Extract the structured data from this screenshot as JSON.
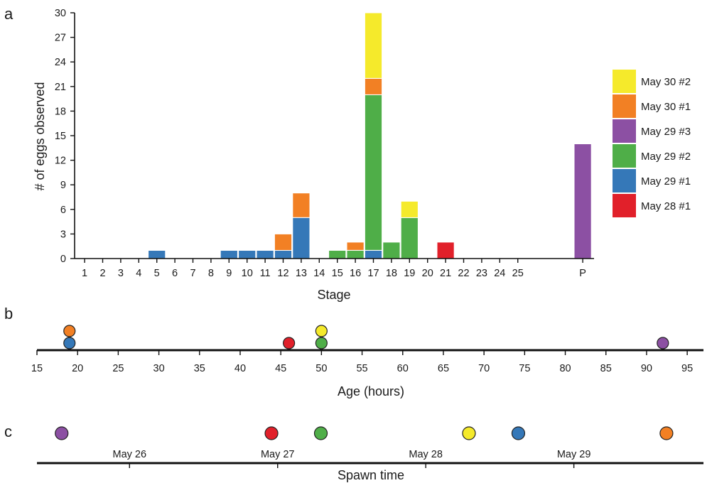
{
  "panels": [
    {
      "letter": "a"
    },
    {
      "letter": "b"
    },
    {
      "letter": "c"
    }
  ],
  "series_colors": {
    "May 30 #2": "#f5ea2b",
    "May 30 #1": "#f28024",
    "May 29 #3": "#8c50a3",
    "May 29 #2": "#4fae48",
    "May 29 #1": "#3578b8",
    "May 28 #1": "#e1202a"
  },
  "chart_data": [
    {
      "type": "bar",
      "stacked": true,
      "xlabel": "Stage",
      "ylabel": "# of eggs observed",
      "ylim": [
        0,
        30
      ],
      "yticks": [
        0,
        3,
        6,
        9,
        12,
        15,
        18,
        21,
        24,
        27,
        30
      ],
      "categories": [
        "1",
        "2",
        "3",
        "4",
        "5",
        "6",
        "7",
        "8",
        "9",
        "10",
        "11",
        "12",
        "13",
        "14",
        "15",
        "16",
        "17",
        "18",
        "19",
        "20",
        "21",
        "22",
        "23",
        "24",
        "25",
        "P"
      ],
      "legend_position": "right",
      "legend": [
        "May 30 #2",
        "May 30 #1",
        "May 29 #3",
        "May 29 #2",
        "May 29 #1",
        "May 28 #1"
      ],
      "series": [
        {
          "name": "May 28 #1",
          "values": [
            0,
            0,
            0,
            0,
            0,
            0,
            0,
            0,
            0,
            0,
            0,
            0,
            0,
            0,
            0,
            0,
            0,
            0,
            0,
            0,
            2,
            0,
            0,
            0,
            0,
            0
          ]
        },
        {
          "name": "May 29 #1",
          "values": [
            0,
            0,
            0,
            0,
            1,
            0,
            0,
            0,
            1,
            1,
            1,
            1,
            5,
            0,
            0,
            0,
            1,
            0,
            0,
            0,
            0,
            0,
            0,
            0,
            0,
            0
          ]
        },
        {
          "name": "May 29 #2",
          "values": [
            0,
            0,
            0,
            0,
            0,
            0,
            0,
            0,
            0,
            0,
            0,
            0,
            0,
            0,
            1,
            1,
            19,
            2,
            5,
            0,
            0,
            0,
            0,
            0,
            0,
            0
          ]
        },
        {
          "name": "May 29 #3",
          "values": [
            0,
            0,
            0,
            0,
            0,
            0,
            0,
            0,
            0,
            0,
            0,
            0,
            0,
            0,
            0,
            0,
            0,
            0,
            0,
            0,
            0,
            0,
            0,
            0,
            0,
            14
          ]
        },
        {
          "name": "May 30 #1",
          "values": [
            0,
            0,
            0,
            0,
            0,
            0,
            0,
            0,
            0,
            0,
            0,
            2,
            3,
            0,
            0,
            1,
            2,
            0,
            0,
            0,
            0,
            0,
            0,
            0,
            0,
            0
          ]
        },
        {
          "name": "May 30 #2",
          "values": [
            0,
            0,
            0,
            0,
            0,
            0,
            0,
            0,
            0,
            0,
            0,
            0,
            0,
            0,
            0,
            0,
            8,
            0,
            2,
            0,
            0,
            0,
            0,
            0,
            0,
            0
          ]
        }
      ]
    },
    {
      "type": "scatter",
      "xlabel": "Age (hours)",
      "xlim": [
        15,
        97
      ],
      "xticks": [
        15,
        20,
        25,
        30,
        35,
        40,
        45,
        50,
        55,
        60,
        65,
        70,
        75,
        80,
        85,
        90,
        95
      ],
      "points": [
        {
          "series": "May 29 #1",
          "x": 19,
          "row": 0
        },
        {
          "series": "May 30 #1",
          "x": 19,
          "row": 1
        },
        {
          "series": "May 28 #1",
          "x": 46,
          "row": 0
        },
        {
          "series": "May 29 #2",
          "x": 50,
          "row": 0
        },
        {
          "series": "May 30 #2",
          "x": 50,
          "row": 1
        },
        {
          "series": "May 29 #3",
          "x": 92,
          "row": 0
        }
      ]
    },
    {
      "type": "scatter",
      "xlabel": "Spawn time",
      "xlim": [
        "May 25 09:00",
        "May 29 21:00"
      ],
      "xticks": [
        "May 26",
        "May 27",
        "May 28",
        "May 29"
      ],
      "points": [
        {
          "series": "May 29 #3",
          "x": "May 25 13:00"
        },
        {
          "series": "May 28 #1",
          "x": "May 26 23:00"
        },
        {
          "series": "May 29 #2",
          "x": "May 27 07:00"
        },
        {
          "series": "May 30 #2",
          "x": "May 28 07:00"
        },
        {
          "series": "May 29 #1",
          "x": "May 28 15:00"
        },
        {
          "series": "May 30 #1",
          "x": "May 29 15:00"
        }
      ]
    }
  ]
}
